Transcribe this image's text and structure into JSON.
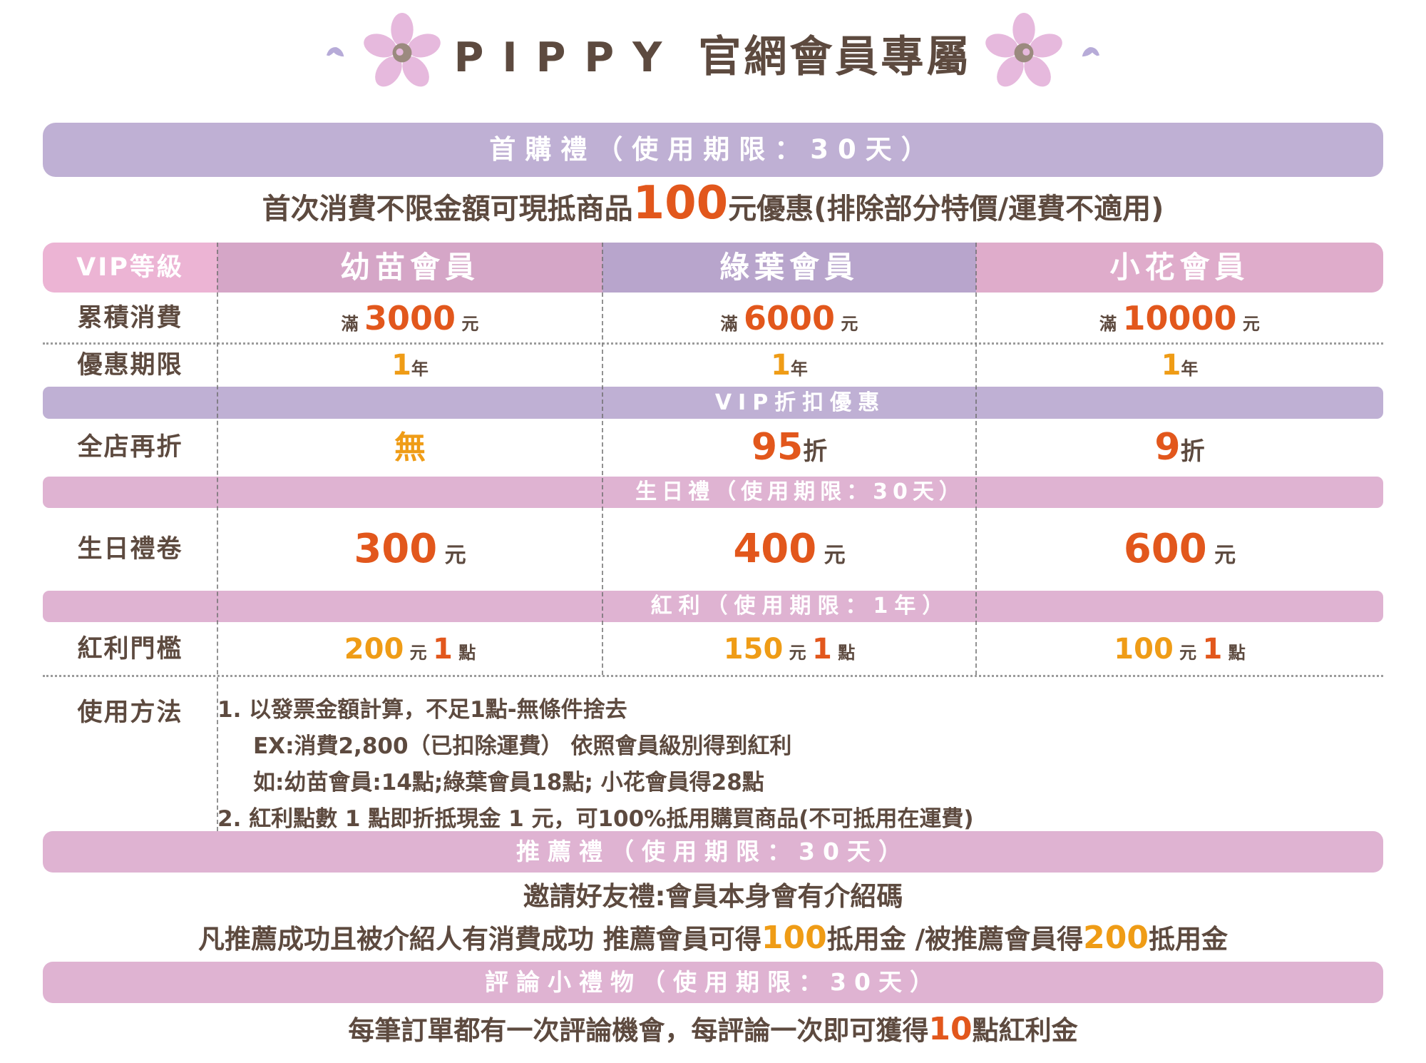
{
  "title": {
    "latin": "PIPPY",
    "cjk": " 官網會員專屬"
  },
  "colors": {
    "brown": "#5d4a3f",
    "orange": "#e2571c",
    "amber": "#ef9c16",
    "lavender_banner": "#bfb0d4",
    "pink_banner": "#dfb3d2",
    "header_label": "#ecb4d4",
    "header_tier1": "#d5a6c7",
    "header_tier2": "#b8a5cc",
    "header_tier3": "#dfaccb",
    "flower_petal": "#e6b9dd",
    "flower_center": "#9b8a7f",
    "sprig": "#b7abd8"
  },
  "icons": {
    "left_flower": "sakura-flower",
    "right_flower": "sakura-flower",
    "left_sprig": "leaf-sprig",
    "right_sprig": "leaf-sprig"
  },
  "first_purchase": {
    "banner": "首購禮（使用期限：30天）",
    "desc": [
      {
        "t": "首次消費不限金額可現抵商品",
        "c": "d40 brown"
      },
      {
        "t": "100",
        "c": "n64 orange"
      },
      {
        "t": "元優惠(排除部分特價/運費不適用)",
        "c": "d40 brown"
      }
    ]
  },
  "vip_table": {
    "header": {
      "label": "VIP等級",
      "tiers": [
        "幼苗會員",
        "綠葉會員",
        "小花會員"
      ]
    },
    "spend": {
      "label": "累積消費",
      "cells": [
        [
          {
            "t": "滿 ",
            "c": "u24 brown"
          },
          {
            "t": "3000",
            "c": "n46 orange"
          },
          {
            "t": " 元",
            "c": "u24 brown"
          }
        ],
        [
          {
            "t": "滿 ",
            "c": "u24 brown"
          },
          {
            "t": "6000",
            "c": "n46 orange"
          },
          {
            "t": " 元",
            "c": "u24 brown"
          }
        ],
        [
          {
            "t": "滿 ",
            "c": "u24 brown"
          },
          {
            "t": "10000",
            "c": "n46 orange"
          },
          {
            "t": " 元",
            "c": "u24 brown"
          }
        ]
      ]
    },
    "period": {
      "label": "優惠期限",
      "cells": [
        [
          {
            "t": "1",
            "c": "n40 amber"
          },
          {
            "t": "年",
            "c": "u24 brown"
          }
        ],
        [
          {
            "t": "1",
            "c": "n40 amber"
          },
          {
            "t": "年",
            "c": "u24 brown"
          }
        ],
        [
          {
            "t": "1",
            "c": "n40 amber"
          },
          {
            "t": "年",
            "c": "u24 brown"
          }
        ]
      ]
    },
    "discount_banner": "VIP折扣優惠",
    "discount": {
      "label": "全店再折",
      "cells": [
        [
          {
            "t": "無",
            "c": "n44 amber"
          }
        ],
        [
          {
            "t": "95",
            "c": "n52 orange"
          },
          {
            "t": "折",
            "c": "u34 brown"
          }
        ],
        [
          {
            "t": "9",
            "c": "n52 orange"
          },
          {
            "t": "折",
            "c": "u34 brown"
          }
        ]
      ]
    },
    "birthday_banner": "生日禮（使用期限：30天）",
    "birthday": {
      "label": "生日禮卷",
      "cells": [
        [
          {
            "t": "300",
            "c": "n56 orange"
          },
          {
            "t": " 元",
            "c": "u30 brown"
          }
        ],
        [
          {
            "t": "400",
            "c": "n56 orange"
          },
          {
            "t": " 元",
            "c": "u30 brown"
          }
        ],
        [
          {
            "t": "600",
            "c": "n56 orange"
          },
          {
            "t": " 元",
            "c": "u30 brown"
          }
        ]
      ]
    },
    "bonus_banner": "紅利（使用期限：1年）",
    "bonus": {
      "label": "紅利門檻",
      "cells": [
        [
          {
            "t": "200",
            "c": "n40 amber"
          },
          {
            "t": " 元 ",
            "c": "u24 brown"
          },
          {
            "t": "1",
            "c": "n40 orange"
          },
          {
            "t": " 點",
            "c": "u24 brown"
          }
        ],
        [
          {
            "t": "150",
            "c": "n40 amber"
          },
          {
            "t": " 元 ",
            "c": "u24 brown"
          },
          {
            "t": "1",
            "c": "n40 orange"
          },
          {
            "t": " 點",
            "c": "u24 brown"
          }
        ],
        [
          {
            "t": "100",
            "c": "n40 amber"
          },
          {
            "t": " 元 ",
            "c": "u24 brown"
          },
          {
            "t": "1",
            "c": "n40 orange"
          },
          {
            "t": " 點",
            "c": "u24 brown"
          }
        ]
      ]
    },
    "usage": {
      "label": "使用方法",
      "lines": [
        "1. 以發票金額計算，不足1點-無條件捨去",
        "EX:消費2,800（已扣除運費） 依照會員級別得到紅利",
        "如:幼苗會員:14點;綠葉會員18點; 小花會員得28點",
        "2. 紅利點數 1 點即折抵現金 1 元，可100%抵用購買商品(不可抵用在運費)"
      ]
    }
  },
  "referral": {
    "banner": "推薦禮（使用期限：30天）",
    "invite_line": "邀請好友禮:會員本身會有介紹碼",
    "detail": [
      {
        "t": "凡推薦成功且被介紹人有消費成功 推薦會員可得",
        "c": "d37 brown"
      },
      {
        "t": "100",
        "c": "n44 amber"
      },
      {
        "t": "抵用金 /被推薦會員得",
        "c": "d37 brown"
      },
      {
        "t": "200",
        "c": "n44 amber"
      },
      {
        "t": "抵用金",
        "c": "d37 brown"
      }
    ]
  },
  "review": {
    "banner": "評論小禮物（使用期限：30天）",
    "line": [
      {
        "t": "每筆訂單都有一次評論機會，每評論一次即可獲得",
        "c": "d37 brown"
      },
      {
        "t": "10",
        "c": "n44 orange"
      },
      {
        "t": "點紅利金",
        "c": "d37 brown"
      }
    ]
  }
}
